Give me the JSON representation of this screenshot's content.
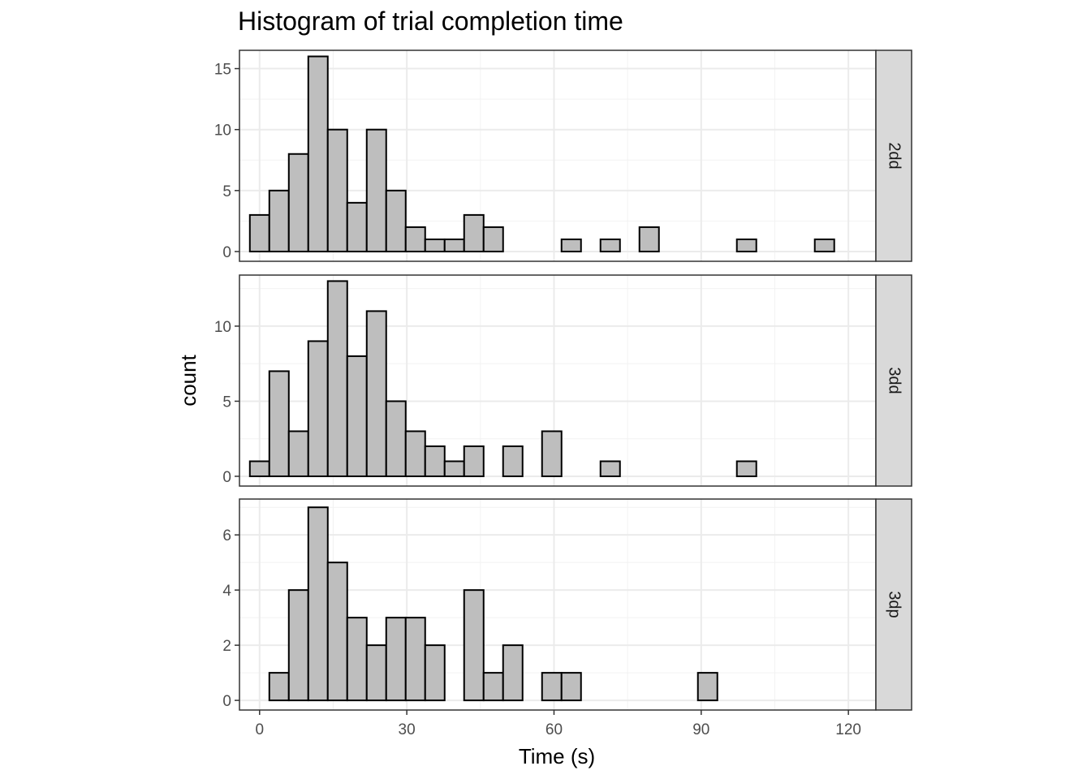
{
  "chart_data": {
    "type": "bar",
    "title": "Histogram of trial completion time",
    "xlabel": "Time (s)",
    "ylabel": "count",
    "xlim": [
      -4.1,
      125.6
    ],
    "x_ticks": [
      0,
      30,
      60,
      90,
      120
    ],
    "bin_width": 3.97,
    "bin_centers": [
      0,
      3.97,
      7.94,
      11.91,
      15.88,
      19.85,
      23.82,
      27.79,
      31.76,
      35.73,
      39.7,
      43.67,
      47.64,
      51.61,
      55.58,
      59.55,
      63.52,
      67.49,
      71.46,
      75.43,
      79.4,
      83.37,
      87.34,
      91.31,
      95.28,
      99.25,
      103.22,
      107.19,
      111.16,
      115.13
    ],
    "grid": true,
    "facets": [
      {
        "label": "2dd",
        "ylim": [
          -0.8,
          16.5
        ],
        "y_ticks": [
          0,
          5,
          10,
          15
        ],
        "values": [
          3,
          5,
          8,
          16,
          10,
          4,
          10,
          5,
          2,
          1,
          1,
          3,
          2,
          0,
          0,
          0,
          1,
          0,
          1,
          0,
          2,
          0,
          0,
          0,
          0,
          1,
          0,
          0,
          0,
          1
        ]
      },
      {
        "label": "3dd",
        "ylim": [
          -0.65,
          13.4
        ],
        "y_ticks": [
          0,
          5,
          10
        ],
        "values": [
          1,
          7,
          3,
          9,
          13,
          8,
          11,
          5,
          3,
          2,
          1,
          2,
          0,
          2,
          0,
          3,
          0,
          0,
          1,
          0,
          0,
          0,
          0,
          0,
          0,
          1,
          0,
          0,
          0,
          0
        ]
      },
      {
        "label": "3dp",
        "ylim": [
          -0.35,
          7.3
        ],
        "y_ticks": [
          0,
          2,
          4,
          6
        ],
        "values": [
          0,
          1,
          4,
          7,
          5,
          3,
          2,
          3,
          3,
          2,
          0,
          4,
          1,
          2,
          0,
          1,
          1,
          0,
          0,
          0,
          0,
          0,
          0,
          1,
          0,
          0,
          0,
          0,
          0,
          0
        ]
      }
    ]
  },
  "colors": {
    "bar_fill": "#bebebe",
    "bar_stroke": "#000000",
    "grid_major": "#ebebeb",
    "grid_minor": "#f2f2f2",
    "panel_border": "#333333",
    "strip_fill": "#d9d9d9",
    "tick_label": "#4d4d4d"
  }
}
